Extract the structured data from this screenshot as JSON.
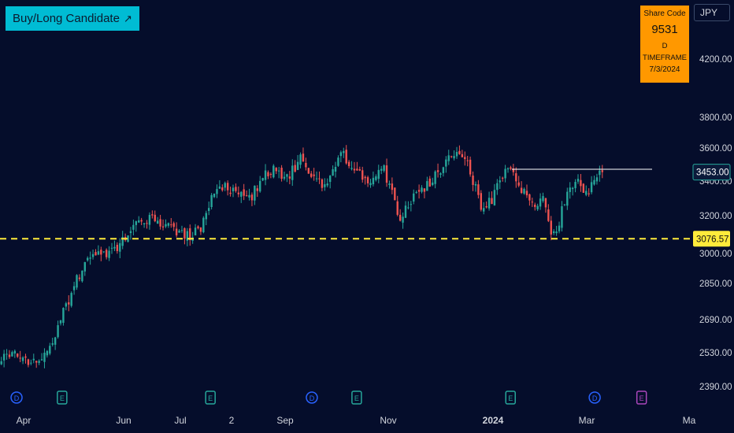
{
  "header": {
    "title": "Buy/Long Candidate",
    "title_arrow_icon": "arrow-up-right-icon",
    "currency": "JPY"
  },
  "info_box": {
    "label": "Share Code",
    "code": "9531",
    "timeframe": "D TIMEFRAME",
    "date": "7/3/2024"
  },
  "colors": {
    "background": "#050d2b",
    "up": "#26a69a",
    "down": "#ef5350",
    "support_line": "#ffeb3b",
    "resistance_line": "#ffffff",
    "title_badge": "#00bcd4",
    "info_box": "#ff9800",
    "axis_text": "#d1d4dc"
  },
  "chart_data": {
    "type": "candlestick",
    "title": "",
    "xlabel": "",
    "ylabel": "",
    "currency": "JPY",
    "x_ticks": [
      "Apr",
      "Jun",
      "Jul",
      "2",
      "Sep",
      "Nov",
      "2024",
      "Mar",
      "Ma"
    ],
    "y_ticks": [
      "4200.00",
      "3800.00",
      "3600.00",
      "3400.00",
      "3200.00",
      "3000.00",
      "2850.00",
      "2690.00",
      "2530.00",
      "2390.00"
    ],
    "scale": "log",
    "price_markers": [
      {
        "label": "3453.00",
        "value": 3453,
        "style": "last-price"
      },
      {
        "label": "3076.57",
        "value": 3076.57,
        "style": "support"
      }
    ],
    "horizontal_lines": [
      {
        "name": "support",
        "value": 3076.57,
        "style": "dashed"
      },
      {
        "name": "resistance",
        "value": 3470,
        "style": "solid"
      }
    ],
    "events": [
      {
        "type": "D",
        "position": 0.024
      },
      {
        "type": "E",
        "position": 0.09
      },
      {
        "type": "E",
        "position": 0.305
      },
      {
        "type": "D",
        "position": 0.452
      },
      {
        "type": "E",
        "position": 0.517
      },
      {
        "type": "E",
        "position": 0.74
      },
      {
        "type": "D",
        "position": 0.862
      },
      {
        "type": "E",
        "position": 0.93
      }
    ],
    "price_path": [
      [
        0,
        2515
      ],
      [
        0.03,
        2520
      ],
      [
        0.045,
        2480
      ],
      [
        0.06,
        2500
      ],
      [
        0.075,
        2600
      ],
      [
        0.095,
        2750
      ],
      [
        0.11,
        2870
      ],
      [
        0.125,
        2980
      ],
      [
        0.14,
        3000
      ],
      [
        0.155,
        3010
      ],
      [
        0.17,
        3030
      ],
      [
        0.185,
        3120
      ],
      [
        0.2,
        3190
      ],
      [
        0.215,
        3175
      ],
      [
        0.23,
        3160
      ],
      [
        0.245,
        3140
      ],
      [
        0.26,
        3110
      ],
      [
        0.275,
        3085
      ],
      [
        0.29,
        3140
      ],
      [
        0.305,
        3280
      ],
      [
        0.325,
        3380
      ],
      [
        0.345,
        3300
      ],
      [
        0.365,
        3320
      ],
      [
        0.38,
        3420
      ],
      [
        0.395,
        3480
      ],
      [
        0.415,
        3420
      ],
      [
        0.435,
        3530
      ],
      [
        0.45,
        3430
      ],
      [
        0.465,
        3380
      ],
      [
        0.48,
        3430
      ],
      [
        0.495,
        3610
      ],
      [
        0.51,
        3450
      ],
      [
        0.525,
        3430
      ],
      [
        0.54,
        3410
      ],
      [
        0.555,
        3520
      ],
      [
        0.565,
        3360
      ],
      [
        0.58,
        3200
      ],
      [
        0.595,
        3280
      ],
      [
        0.61,
        3340
      ],
      [
        0.625,
        3400
      ],
      [
        0.64,
        3470
      ],
      [
        0.655,
        3540
      ],
      [
        0.67,
        3580
      ],
      [
        0.685,
        3430
      ],
      [
        0.7,
        3230
      ],
      [
        0.715,
        3300
      ],
      [
        0.73,
        3440
      ],
      [
        0.745,
        3450
      ],
      [
        0.76,
        3330
      ],
      [
        0.775,
        3260
      ],
      [
        0.79,
        3300
      ],
      [
        0.8,
        3100
      ],
      [
        0.81,
        3140
      ],
      [
        0.82,
        3290
      ],
      [
        0.835,
        3420
      ],
      [
        0.85,
        3300
      ],
      [
        0.865,
        3400
      ],
      [
        0.875,
        3453
      ]
    ]
  }
}
